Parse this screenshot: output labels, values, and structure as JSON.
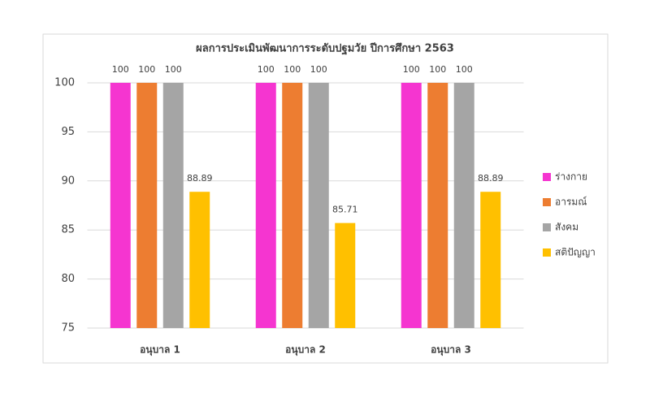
{
  "chart_data": {
    "type": "bar",
    "title": "ผลการประเมินพัฒนาการระดับปฐมวัย ปีการศึกษา 2563",
    "categories": [
      "อนุบาล 1",
      "อนุบาล 2",
      "อนุบาล 3"
    ],
    "series": [
      {
        "name": "ร่างกาย",
        "color": "#f535d0",
        "values": [
          100,
          100,
          100
        ]
      },
      {
        "name": "อารมณ์",
        "color": "#ed7d31",
        "values": [
          100,
          100,
          100
        ]
      },
      {
        "name": "สังคม",
        "color": "#a5a5a5",
        "values": [
          100,
          100,
          100
        ]
      },
      {
        "name": "สติปัญญา",
        "color": "#ffc000",
        "values": [
          88.89,
          85.71,
          88.89
        ]
      }
    ],
    "ylim": [
      75,
      100
    ],
    "yticks": [
      75,
      80,
      85,
      90,
      95,
      100
    ],
    "grid": true,
    "legend": "right"
  }
}
